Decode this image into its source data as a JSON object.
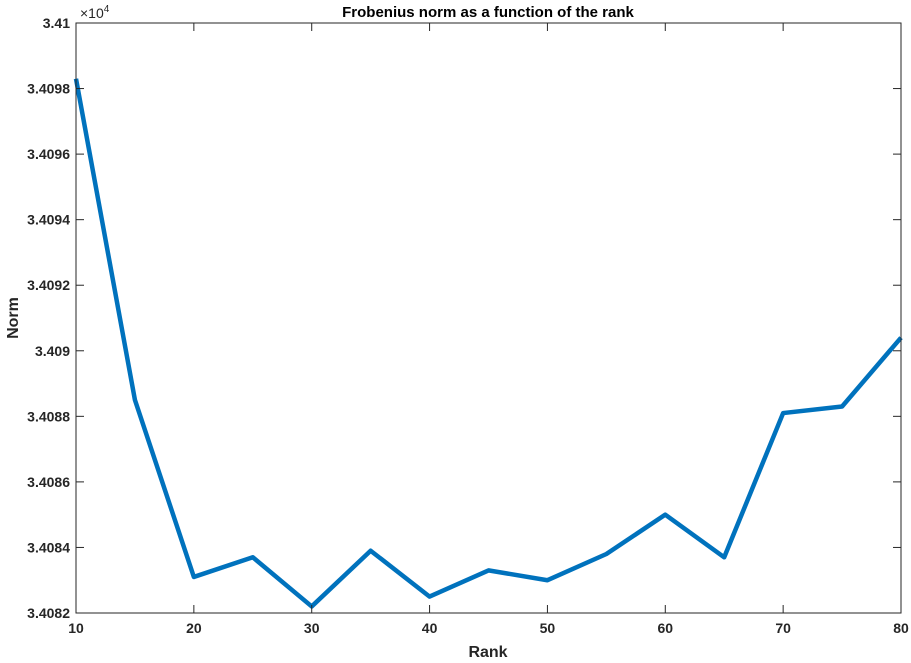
{
  "chart_data": {
    "type": "line",
    "title": "Frobenius norm as a function of the rank",
    "xlabel": "Rank",
    "ylabel": "Norm",
    "exponent_label": {
      "base": "×10",
      "power": "4"
    },
    "xlim": [
      10,
      80
    ],
    "ylim": [
      3.4082,
      3.41
    ],
    "x_ticks": [
      10,
      20,
      30,
      40,
      50,
      60,
      70,
      80
    ],
    "y_ticks": [
      3.4082,
      3.4084,
      3.4086,
      3.4088,
      3.409,
      3.4092,
      3.4094,
      3.4096,
      3.4098,
      3.41
    ],
    "y_tick_labels": [
      "3.4082",
      "3.4084",
      "3.4086",
      "3.4088",
      "3.409",
      "3.4092",
      "3.4094",
      "3.4096",
      "3.4098",
      "3.41"
    ],
    "grid": false,
    "series": [
      {
        "color": "#0072BD",
        "x": [
          10,
          15,
          20,
          25,
          30,
          35,
          40,
          45,
          50,
          55,
          60,
          65,
          70,
          75,
          80
        ],
        "y": [
          3.40983,
          3.40885,
          3.40831,
          3.40837,
          3.40822,
          3.40839,
          3.40825,
          3.40833,
          3.4083,
          3.40838,
          3.4085,
          3.40837,
          3.40881,
          3.40883,
          3.40904
        ]
      }
    ]
  }
}
